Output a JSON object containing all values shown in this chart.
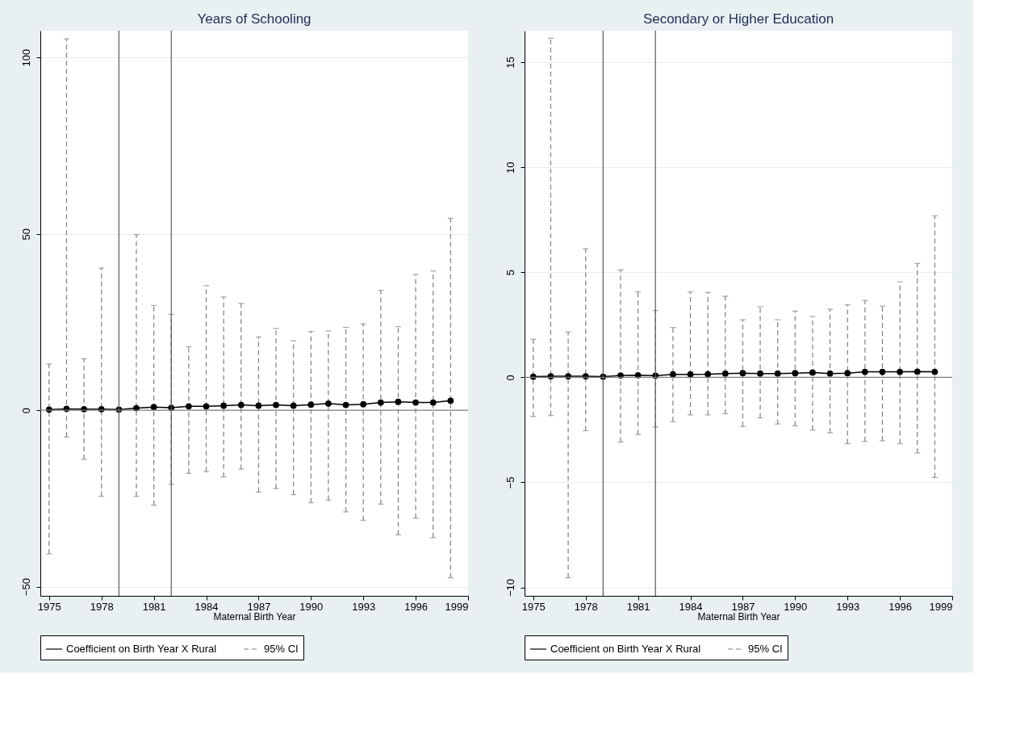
{
  "chart_data": [
    {
      "type": "line",
      "title": "Years of Schooling",
      "xlabel": "Maternal Birth Year",
      "x": [
        1975,
        1976,
        1977,
        1978,
        1979,
        1980,
        1981,
        1982,
        1983,
        1984,
        1985,
        1986,
        1987,
        1988,
        1989,
        1990,
        1991,
        1992,
        1993,
        1994,
        1995,
        1996,
        1997,
        1998
      ],
      "series": [
        {
          "name": "Coefficient on Birth Year X Rural",
          "color": "#000000",
          "values": [
            0.2,
            0.4,
            0.3,
            0.3,
            0.2,
            0.6,
            0.9,
            0.7,
            1.1,
            1.1,
            1.3,
            1.5,
            1.3,
            1.5,
            1.3,
            1.6,
            1.9,
            1.5,
            1.7,
            2.2,
            2.4,
            2.2,
            2.2,
            2.7
          ],
          "errors": [
            [
              -40.7,
              13.1
            ],
            [
              -7.6,
              105.3
            ],
            [
              -13.9,
              14.6
            ],
            [
              -24.4,
              40.3
            ],
            null,
            [
              -24.4,
              49.8
            ],
            [
              -26.9,
              29.7
            ],
            [
              -21.0,
              27.2
            ],
            [
              -17.9,
              18.0
            ],
            [
              -17.4,
              35.3
            ],
            [
              -18.9,
              32.1
            ],
            [
              -16.7,
              30.3
            ],
            [
              -23.2,
              20.8
            ],
            [
              -22.2,
              23.2
            ],
            [
              -23.9,
              19.7
            ],
            [
              -26.2,
              22.3
            ],
            [
              -25.5,
              22.5
            ],
            [
              -28.8,
              23.5
            ],
            [
              -31.2,
              24.5
            ],
            [
              -26.6,
              34.0
            ],
            [
              -35.3,
              23.7
            ],
            [
              -30.6,
              38.5
            ],
            [
              -36.1,
              39.5
            ],
            [
              -47.5,
              54.4
            ]
          ]
        }
      ],
      "annotations": [
        "95% CI"
      ],
      "xlim": [
        1974.5,
        1999
      ],
      "xticks": [
        1975,
        1978,
        1981,
        1984,
        1987,
        1990,
        1993,
        1996,
        1999
      ],
      "ylim": [
        -52.6,
        107.6
      ],
      "yticks": [
        -50,
        0,
        50,
        100
      ],
      "grid": "y",
      "legend": "bottom",
      "marker": "circle",
      "line_style": "solid",
      "ref_lines": [
        {
          "axis": "x",
          "value": 1979,
          "color": "#595959"
        },
        {
          "axis": "x",
          "value": 1982,
          "color": "#595959"
        },
        {
          "axis": "y",
          "value": 0,
          "color": "#7f7f7f"
        }
      ]
    },
    {
      "type": "line",
      "title": "Secondary or Higher Education",
      "xlabel": "Maternal Birth Year",
      "x": [
        1975,
        1976,
        1977,
        1978,
        1979,
        1980,
        1981,
        1982,
        1983,
        1984,
        1985,
        1986,
        1987,
        1988,
        1989,
        1990,
        1991,
        1992,
        1993,
        1994,
        1995,
        1996,
        1997,
        1998
      ],
      "series": [
        {
          "name": "Coefficient on Birth Year X Rural",
          "color": "#000000",
          "values": [
            0.03,
            0.05,
            0.05,
            0.05,
            0.03,
            0.09,
            0.1,
            0.08,
            0.14,
            0.14,
            0.15,
            0.18,
            0.2,
            0.18,
            0.18,
            0.2,
            0.23,
            0.18,
            0.2,
            0.26,
            0.26,
            0.26,
            0.27,
            0.26
          ],
          "errors": [
            [
              -1.87,
              1.81
            ],
            [
              -1.82,
              16.14
            ],
            [
              -9.54,
              2.16
            ],
            [
              -2.54,
              6.12
            ],
            null,
            [
              -3.08,
              5.12
            ],
            [
              -2.72,
              4.07
            ],
            [
              -2.36,
              3.18
            ],
            [
              -2.11,
              2.37
            ],
            [
              -1.79,
              4.07
            ],
            [
              -1.79,
              4.04
            ],
            [
              -1.73,
              3.86
            ],
            [
              -2.34,
              2.74
            ],
            [
              -1.93,
              3.36
            ],
            [
              -2.22,
              2.74
            ],
            [
              -2.31,
              3.15
            ],
            [
              -2.51,
              2.9
            ],
            [
              -2.64,
              3.24
            ],
            [
              -3.16,
              3.45
            ],
            [
              -3.05,
              3.66
            ],
            [
              -3.02,
              3.39
            ],
            [
              -3.16,
              4.54
            ],
            [
              -3.6,
              5.42
            ],
            [
              -4.77,
              7.69
            ]
          ]
        }
      ],
      "annotations": [
        "95% CI"
      ],
      "xlim": [
        1974.5,
        1999
      ],
      "xticks": [
        1975,
        1978,
        1981,
        1984,
        1987,
        1990,
        1993,
        1996,
        1999
      ],
      "ylim": [
        -10.4,
        16.5
      ],
      "yticks": [
        -10,
        -5,
        0,
        5,
        10,
        15
      ],
      "grid": "y",
      "legend": "bottom",
      "marker": "circle",
      "line_style": "solid",
      "ref_lines": [
        {
          "axis": "x",
          "value": 1979,
          "color": "#595959"
        },
        {
          "axis": "x",
          "value": 1982,
          "color": "#595959"
        },
        {
          "axis": "y",
          "value": 0,
          "color": "#7f7f7f"
        }
      ]
    }
  ]
}
